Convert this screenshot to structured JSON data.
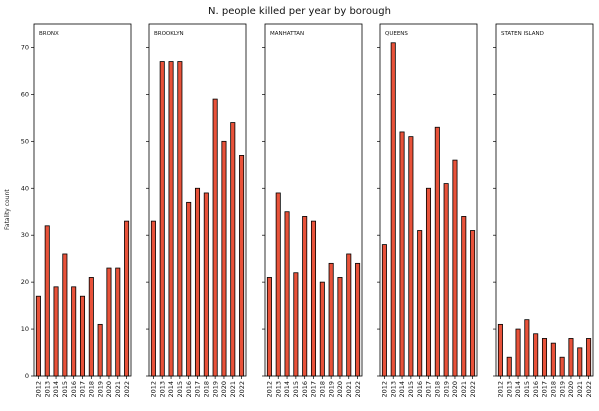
{
  "chart_data": {
    "type": "bar",
    "title": "N. people killed per year by borough",
    "ylabel": "Fatality count",
    "ylim": [
      0,
      75
    ],
    "yticks": [
      0,
      10,
      20,
      30,
      40,
      50,
      60,
      70
    ],
    "bar_color": "#e8523a",
    "categories": [
      "2012",
      "2013",
      "2014",
      "2015",
      "2016",
      "2017",
      "2018",
      "2019",
      "2020",
      "2021",
      "2022"
    ],
    "panels": [
      {
        "name": "BRONX",
        "values": [
          17,
          32,
          19,
          26,
          19,
          17,
          21,
          11,
          23,
          23,
          33
        ]
      },
      {
        "name": "BROOKLYN",
        "values": [
          33,
          67,
          67,
          67,
          37,
          40,
          39,
          59,
          50,
          54,
          47
        ]
      },
      {
        "name": "MANHATTAN",
        "values": [
          21,
          39,
          35,
          22,
          34,
          33,
          20,
          24,
          21,
          26,
          24
        ]
      },
      {
        "name": "QUEENS",
        "values": [
          28,
          71,
          52,
          51,
          31,
          40,
          53,
          41,
          46,
          34,
          31
        ]
      },
      {
        "name": "STATEN ISLAND",
        "values": [
          11,
          4,
          10,
          12,
          9,
          8,
          7,
          4,
          8,
          6,
          8
        ]
      }
    ]
  }
}
